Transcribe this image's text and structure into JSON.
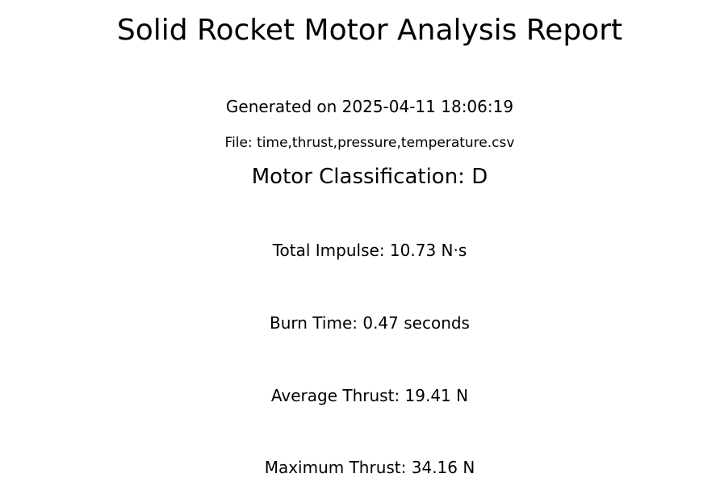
{
  "report": {
    "title": "Solid Rocket Motor Analysis Report",
    "generated": "Generated on 2025-04-11 18:06:19",
    "file": "File: time,thrust,pressure,temperature.csv",
    "classification": "Motor Classification: D"
  },
  "metrics": [
    "Total Impulse: 10.73 N·s",
    "Burn Time: 0.47 seconds",
    "Average Thrust: 19.41 N",
    "Maximum Thrust: 34.16 N"
  ]
}
